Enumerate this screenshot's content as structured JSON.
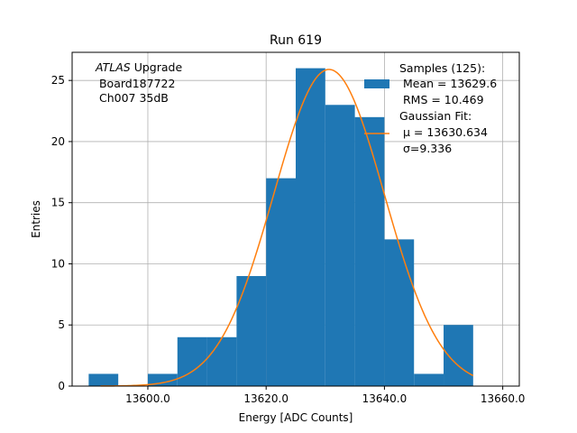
{
  "colors": {
    "bar": "#1f77b4",
    "fit": "#ff7f0e",
    "grid": "#b0b0b0",
    "axis": "#000000"
  },
  "chart_data": {
    "type": "bar",
    "title": "Run 619",
    "xlabel": "Energy [ADC Counts]",
    "ylabel": "Entries",
    "xlim": [
      13587.2,
      13662.8
    ],
    "ylim": [
      0,
      27.3
    ],
    "grid": true,
    "xticks": [
      13600,
      13620,
      13640,
      13660
    ],
    "xtick_labels": [
      "13600.0",
      "13620.0",
      "13640.0",
      "13660.0"
    ],
    "yticks": [
      0,
      5,
      10,
      15,
      20,
      25
    ],
    "ytick_labels": [
      "0",
      "5",
      "10",
      "15",
      "20",
      "25"
    ],
    "bins": [
      {
        "left": 13590,
        "right": 13595,
        "value": 1
      },
      {
        "left": 13595,
        "right": 13600,
        "value": 0
      },
      {
        "left": 13600,
        "right": 13605,
        "value": 1
      },
      {
        "left": 13605,
        "right": 13610,
        "value": 4
      },
      {
        "left": 13610,
        "right": 13615,
        "value": 4
      },
      {
        "left": 13615,
        "right": 13620,
        "value": 9
      },
      {
        "left": 13620,
        "right": 13625,
        "value": 17
      },
      {
        "left": 13625,
        "right": 13630,
        "value": 26
      },
      {
        "left": 13630,
        "right": 13635,
        "value": 23
      },
      {
        "left": 13635,
        "right": 13640,
        "value": 22
      },
      {
        "left": 13640,
        "right": 13645,
        "value": 12
      },
      {
        "left": 13645,
        "right": 13650,
        "value": 1
      },
      {
        "left": 13650,
        "right": 13655,
        "value": 5
      }
    ],
    "fit": {
      "type": "gaussian",
      "mu": 13630.634,
      "sigma": 9.336,
      "amplitude": 25.9,
      "x_range": [
        13592,
        13655
      ]
    },
    "annotation": {
      "line1_italic": "ATLAS",
      "line1_rest": " Upgrade",
      "line2": " Board187722",
      "line3": " Ch007 35dB"
    },
    "legend": {
      "position": "top-right",
      "entries": [
        {
          "kind": "patch",
          "label_lines": [
            "Samples (125):",
            " Mean = 13629.6",
            " RMS = 10.469"
          ]
        },
        {
          "kind": "line",
          "label_lines": [
            "Gaussian Fit:",
            " μ = 13630.634",
            " σ=9.336"
          ]
        }
      ]
    }
  }
}
